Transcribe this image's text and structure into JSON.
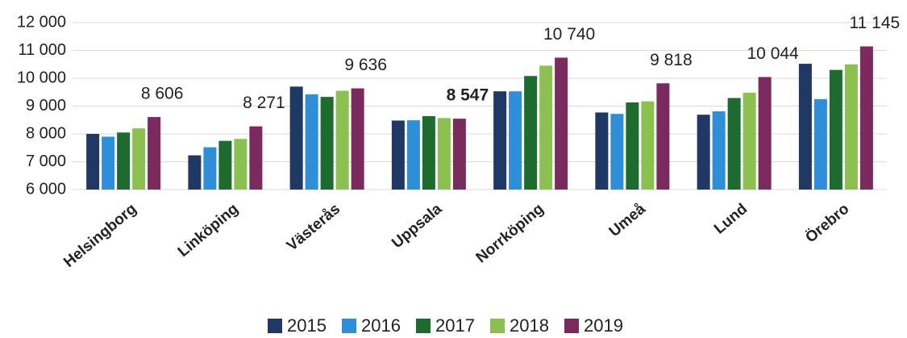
{
  "chart_data": {
    "type": "bar",
    "categories": [
      "Helsingborg",
      "Linköping",
      "Västerås",
      "Uppsala",
      "Norrköping",
      "Umeå",
      "Lund",
      "Örebro"
    ],
    "series": [
      {
        "name": "2015",
        "color": "#1f3864",
        "values": [
          8000,
          7230,
          9700,
          8480,
          9530,
          8770,
          8690,
          10520
        ]
      },
      {
        "name": "2016",
        "color": "#2e8fd8",
        "values": [
          7900,
          7520,
          9420,
          8490,
          9530,
          8720,
          8810,
          9250
        ]
      },
      {
        "name": "2017",
        "color": "#1e6b2f",
        "values": [
          8050,
          7750,
          9330,
          8640,
          10080,
          9130,
          9290,
          10300
        ]
      },
      {
        "name": "2018",
        "color": "#8cc152",
        "values": [
          8200,
          7820,
          9550,
          8570,
          10450,
          9170,
          9480,
          10500
        ]
      },
      {
        "name": "2019",
        "color": "#7b2a5e",
        "values": [
          8606,
          8271,
          9636,
          8547,
          10740,
          9818,
          10044,
          11145
        ],
        "value_labels": [
          "8 606",
          "8 271",
          "9 636",
          "8 547",
          "10 740",
          "9 818",
          "10 044",
          "11 145"
        ],
        "value_label_bold": [
          false,
          false,
          false,
          true,
          false,
          false,
          false,
          false
        ]
      }
    ],
    "ylim": [
      6000,
      12000
    ],
    "yticks": [
      {
        "value": 6000,
        "label": "6 000"
      },
      {
        "value": 7000,
        "label": "7 000"
      },
      {
        "value": 8000,
        "label": "8 000"
      },
      {
        "value": 9000,
        "label": "9 000"
      },
      {
        "value": 10000,
        "label": "10 000"
      },
      {
        "value": 11000,
        "label": "11 000"
      },
      {
        "value": 12000,
        "label": "12 000"
      }
    ],
    "grid": true,
    "legend": "bottom"
  }
}
